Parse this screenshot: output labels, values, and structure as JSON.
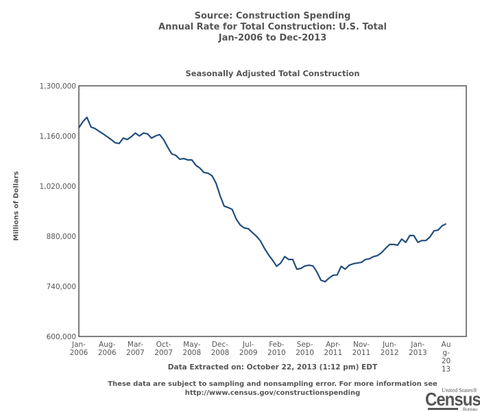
{
  "header": {
    "line1": "Source: Construction Spending",
    "line2": "Annual Rate for Total Construction: U.S. Total",
    "line3": "Jan-2006 to Dec-2013"
  },
  "footer": {
    "extracted": "Data Extracted on: October 22, 2013 (1:12 pm) EDT",
    "note_line1": "These data are subject to sampling and nonsampling error. For more information see",
    "note_line2": "http://www.census.gov/constructionspending"
  },
  "logo": {
    "top": "United States®",
    "main": "Census",
    "bottom": "Bureau"
  },
  "colors": {
    "line": "#214d7e",
    "axis": "#555555"
  },
  "chart_data": {
    "type": "line",
    "title": "Seasonally Adjusted Total Construction",
    "xlabel": "",
    "ylabel": "Millions of Dollars",
    "ylim": [
      600000,
      1300000
    ],
    "yticks": [
      600000,
      740000,
      880000,
      1020000,
      1160000,
      1300000
    ],
    "ytick_labels": [
      "600,000",
      "740,000",
      "880,000",
      "1,020,000",
      "1,160,000",
      "1,300,000"
    ],
    "xtick_labels": [
      {
        "index": 0,
        "lines": [
          "Jan-",
          "2006"
        ]
      },
      {
        "index": 7,
        "lines": [
          "Aug-",
          "2006"
        ]
      },
      {
        "index": 14,
        "lines": [
          "Mar-",
          "2007"
        ]
      },
      {
        "index": 21,
        "lines": [
          "Oct-",
          "2007"
        ]
      },
      {
        "index": 28,
        "lines": [
          "May-",
          "2008"
        ]
      },
      {
        "index": 35,
        "lines": [
          "Dec-",
          "2008"
        ]
      },
      {
        "index": 42,
        "lines": [
          "Jul-",
          "2009"
        ]
      },
      {
        "index": 49,
        "lines": [
          "Feb-",
          "2010"
        ]
      },
      {
        "index": 56,
        "lines": [
          "Sep-",
          "2010"
        ]
      },
      {
        "index": 63,
        "lines": [
          "Apr-",
          "2011"
        ]
      },
      {
        "index": 70,
        "lines": [
          "Nov-",
          "2011"
        ]
      },
      {
        "index": 77,
        "lines": [
          "Jun-",
          "2012"
        ]
      },
      {
        "index": 84,
        "lines": [
          "Jan-",
          "2013"
        ]
      },
      {
        "index": 91,
        "lines": [
          "Au",
          "g-",
          "20",
          "13"
        ]
      }
    ],
    "x_start": "Jan-2006",
    "x_end_axis": "Dec-2013",
    "x_months_axis": 96,
    "grid": false,
    "legend": "none",
    "series": [
      {
        "name": "Total Construction",
        "values": [
          1183000,
          1200000,
          1212000,
          1185000,
          1181000,
          1173000,
          1166000,
          1158000,
          1150000,
          1141000,
          1139000,
          1154000,
          1150000,
          1158000,
          1168000,
          1160000,
          1168000,
          1166000,
          1154000,
          1160000,
          1164000,
          1150000,
          1129000,
          1110000,
          1106000,
          1095000,
          1097000,
          1093000,
          1093000,
          1078000,
          1070000,
          1058000,
          1056000,
          1049000,
          1028000,
          993000,
          964000,
          960000,
          955000,
          928000,
          911000,
          903000,
          901000,
          890000,
          880000,
          867000,
          846000,
          828000,
          813000,
          796000,
          805000,
          823000,
          815000,
          815000,
          788000,
          790000,
          797000,
          799000,
          797000,
          780000,
          757000,
          753000,
          763000,
          771000,
          772000,
          796000,
          788000,
          799000,
          803000,
          805000,
          807000,
          815000,
          817000,
          823000,
          826000,
          834000,
          846000,
          857000,
          857000,
          855000,
          872000,
          863000,
          882000,
          882000,
          863000,
          868000,
          868000,
          878000,
          895000,
          897000,
          909000,
          915000
        ]
      }
    ]
  }
}
